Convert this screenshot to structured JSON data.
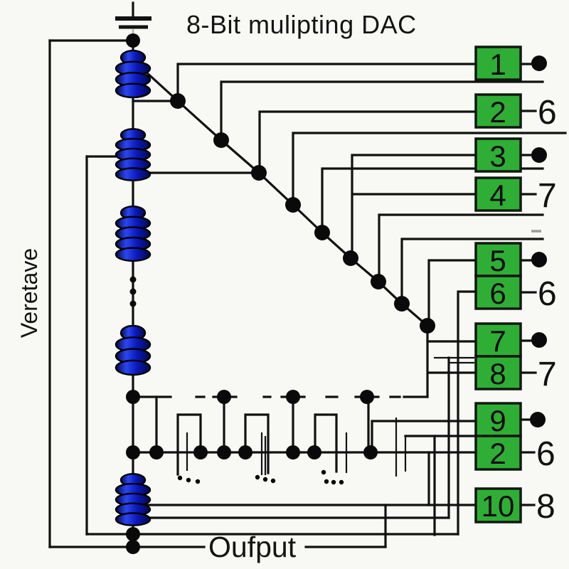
{
  "title": "8-Bit mulipting DAC",
  "left_label": "Veretave",
  "output_label": "Oufput",
  "stray_dash": "–",
  "boxes": [
    {
      "label": "1",
      "terminal": "dot"
    },
    {
      "label": "2",
      "terminal": "6"
    },
    {
      "label": "3",
      "terminal": "dot"
    },
    {
      "label": "4",
      "terminal": "7"
    },
    {
      "label": "5",
      "terminal": "dot"
    },
    {
      "label": "6",
      "terminal": "6"
    },
    {
      "label": "7",
      "terminal": "dot"
    },
    {
      "label": "8",
      "terminal": "7"
    },
    {
      "label": "9",
      "terminal": "dot"
    },
    {
      "label": "2",
      "terminal": "6"
    },
    {
      "label": "10",
      "terminal": "8"
    }
  ],
  "colors": {
    "box_green": "#2fae35",
    "box_border": "#0d1a0d",
    "coil_dark": "#04094e",
    "coil_bright": "#2b46f0",
    "coil_mid": "#0a18b8",
    "wire": "#111111",
    "background": "#f8f8f4"
  }
}
